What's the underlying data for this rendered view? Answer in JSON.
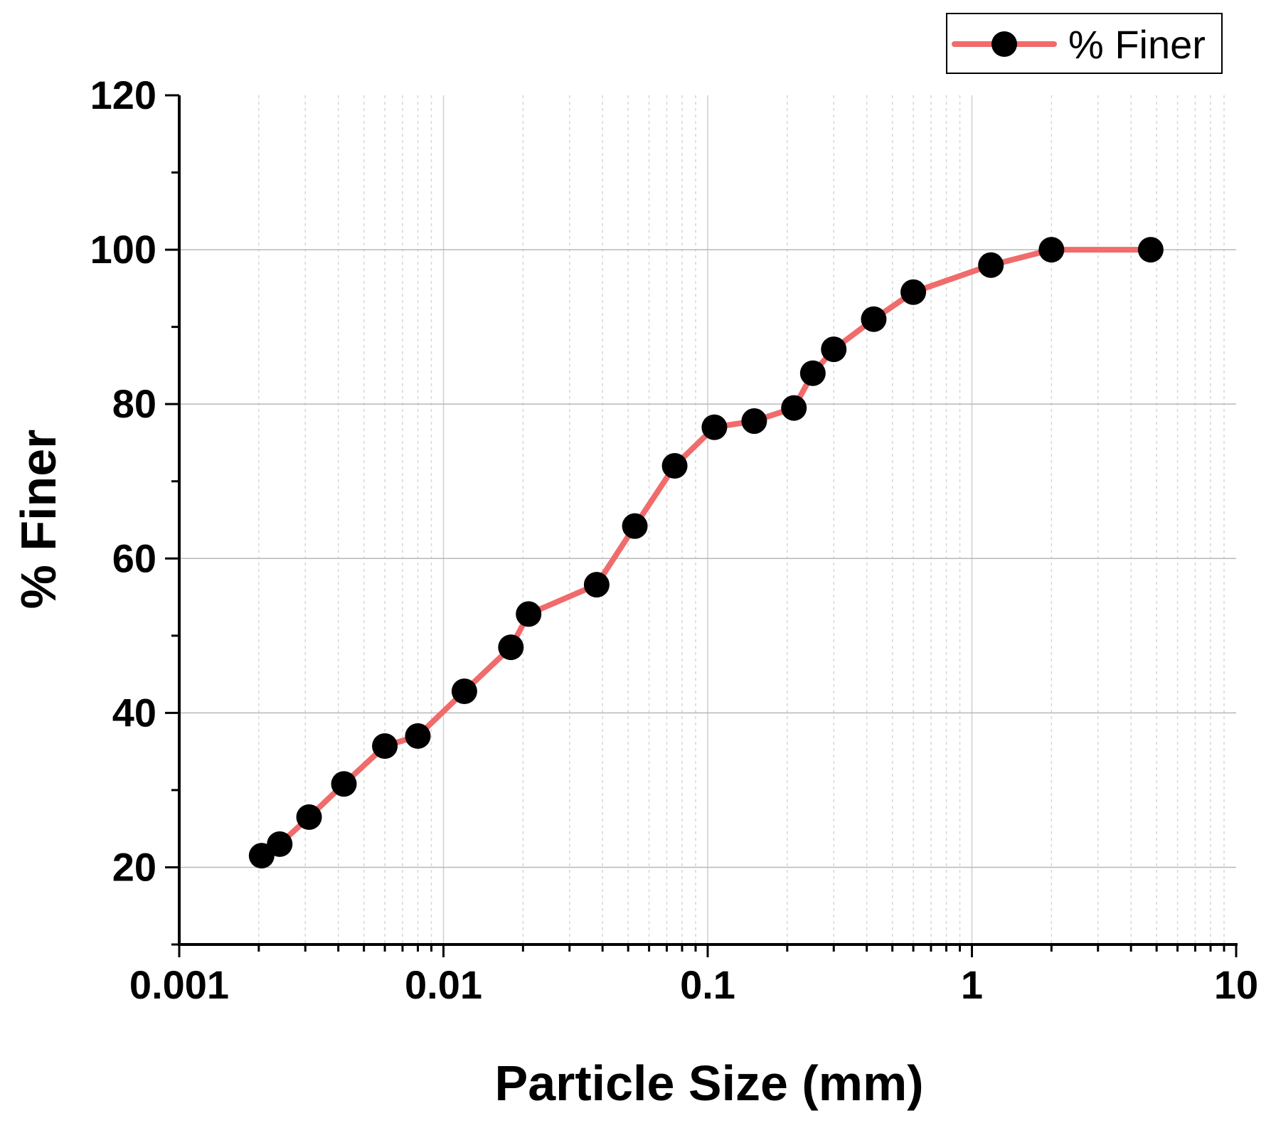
{
  "chart_data": {
    "type": "line",
    "xscale": "log",
    "xlabel": "Particle Size (mm)",
    "ylabel": "% Finer",
    "xlim": [
      0.001,
      10
    ],
    "ylim": [
      10,
      120
    ],
    "xticks": [
      0.001,
      0.01,
      0.1,
      1,
      10
    ],
    "xtick_labels": [
      "0.001",
      "0.01",
      "0.1",
      "1",
      "10"
    ],
    "yticks": [
      20,
      40,
      60,
      80,
      100,
      120
    ],
    "ytick_labels": [
      "20",
      "40",
      "60",
      "80",
      "100",
      "120"
    ],
    "grid": "on",
    "legend_position": "top-right",
    "line_color": "#f06b6b",
    "marker_color": "#000000",
    "series": [
      {
        "name": "% Finer",
        "x": [
          0.00205,
          0.0024,
          0.0031,
          0.0042,
          0.006,
          0.008,
          0.012,
          0.018,
          0.021,
          0.038,
          0.053,
          0.075,
          0.106,
          0.15,
          0.212,
          0.25,
          0.3,
          0.425,
          0.6,
          1.18,
          2,
          4.75
        ],
        "y": [
          21.5,
          23,
          26.5,
          30.8,
          35.7,
          37,
          42.8,
          48.5,
          52.8,
          56.6,
          64.2,
          72,
          77,
          77.8,
          79.5,
          84,
          87.1,
          91,
          94.5,
          98,
          100,
          100
        ]
      }
    ]
  }
}
